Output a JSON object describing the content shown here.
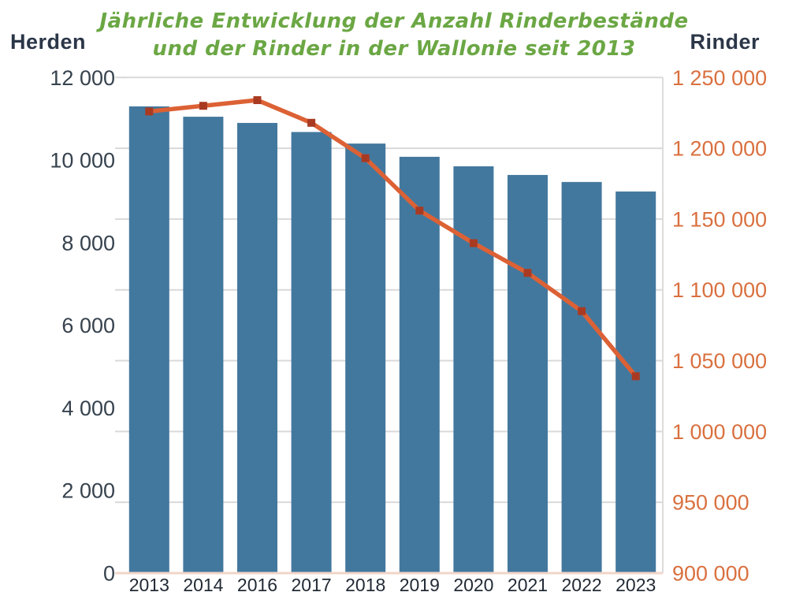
{
  "title": {
    "line1": "Jährliche Entwicklung der Anzahl Rinderbestände",
    "line2": "und der Rinder in der Wallonie seit 2013"
  },
  "left_axis": {
    "label": "Herden"
  },
  "right_axis": {
    "label": "Rinder"
  },
  "colors": {
    "bar": "#43789E",
    "line": "#DC6135",
    "marker": "#A93A22",
    "title_green": "#6BA744",
    "axis_title_navy": "#2B3648",
    "left_tick_text": "#36424E",
    "right_tick_text": "#D9703F",
    "x_tick_text": "#222A35",
    "grid": "#D9D9D9",
    "baseline": "#F2D5C8",
    "plot_border": "#DCDCDC",
    "background": "#FFFFFF"
  },
  "chart_data": {
    "type": "bar",
    "title": "Jährliche Entwicklung der Anzahl Rinderbestände und der Rinder in der Wallonie seit 2013",
    "categories": [
      "2013",
      "2014",
      "2016",
      "2017",
      "2018",
      "2019",
      "2020",
      "2021",
      "2022",
      "2023"
    ],
    "series": [
      {
        "name": "Herden",
        "type": "bar",
        "axis": "left",
        "values": [
          11300,
          11050,
          10900,
          10680,
          10400,
          10080,
          9850,
          9640,
          9470,
          9240
        ]
      },
      {
        "name": "Rinder",
        "type": "line",
        "axis": "right",
        "values": [
          1226000,
          1230000,
          1234000,
          1218000,
          1193000,
          1156000,
          1133000,
          1112000,
          1085000,
          1039000
        ]
      }
    ],
    "left_axis": {
      "label": "Herden",
      "ylim": [
        0,
        12000
      ],
      "ticks": [
        0,
        2000,
        4000,
        6000,
        8000,
        10000,
        12000
      ]
    },
    "right_axis": {
      "label": "Rinder",
      "ylim": [
        900000,
        1250000
      ],
      "ticks": [
        900000,
        950000,
        1000000,
        1050000,
        1100000,
        1150000,
        1200000,
        1250000
      ]
    },
    "grid": "horizontal gridlines at right-axis tick positions",
    "legend_position": "none",
    "number_format": "space-grouped thousands"
  }
}
